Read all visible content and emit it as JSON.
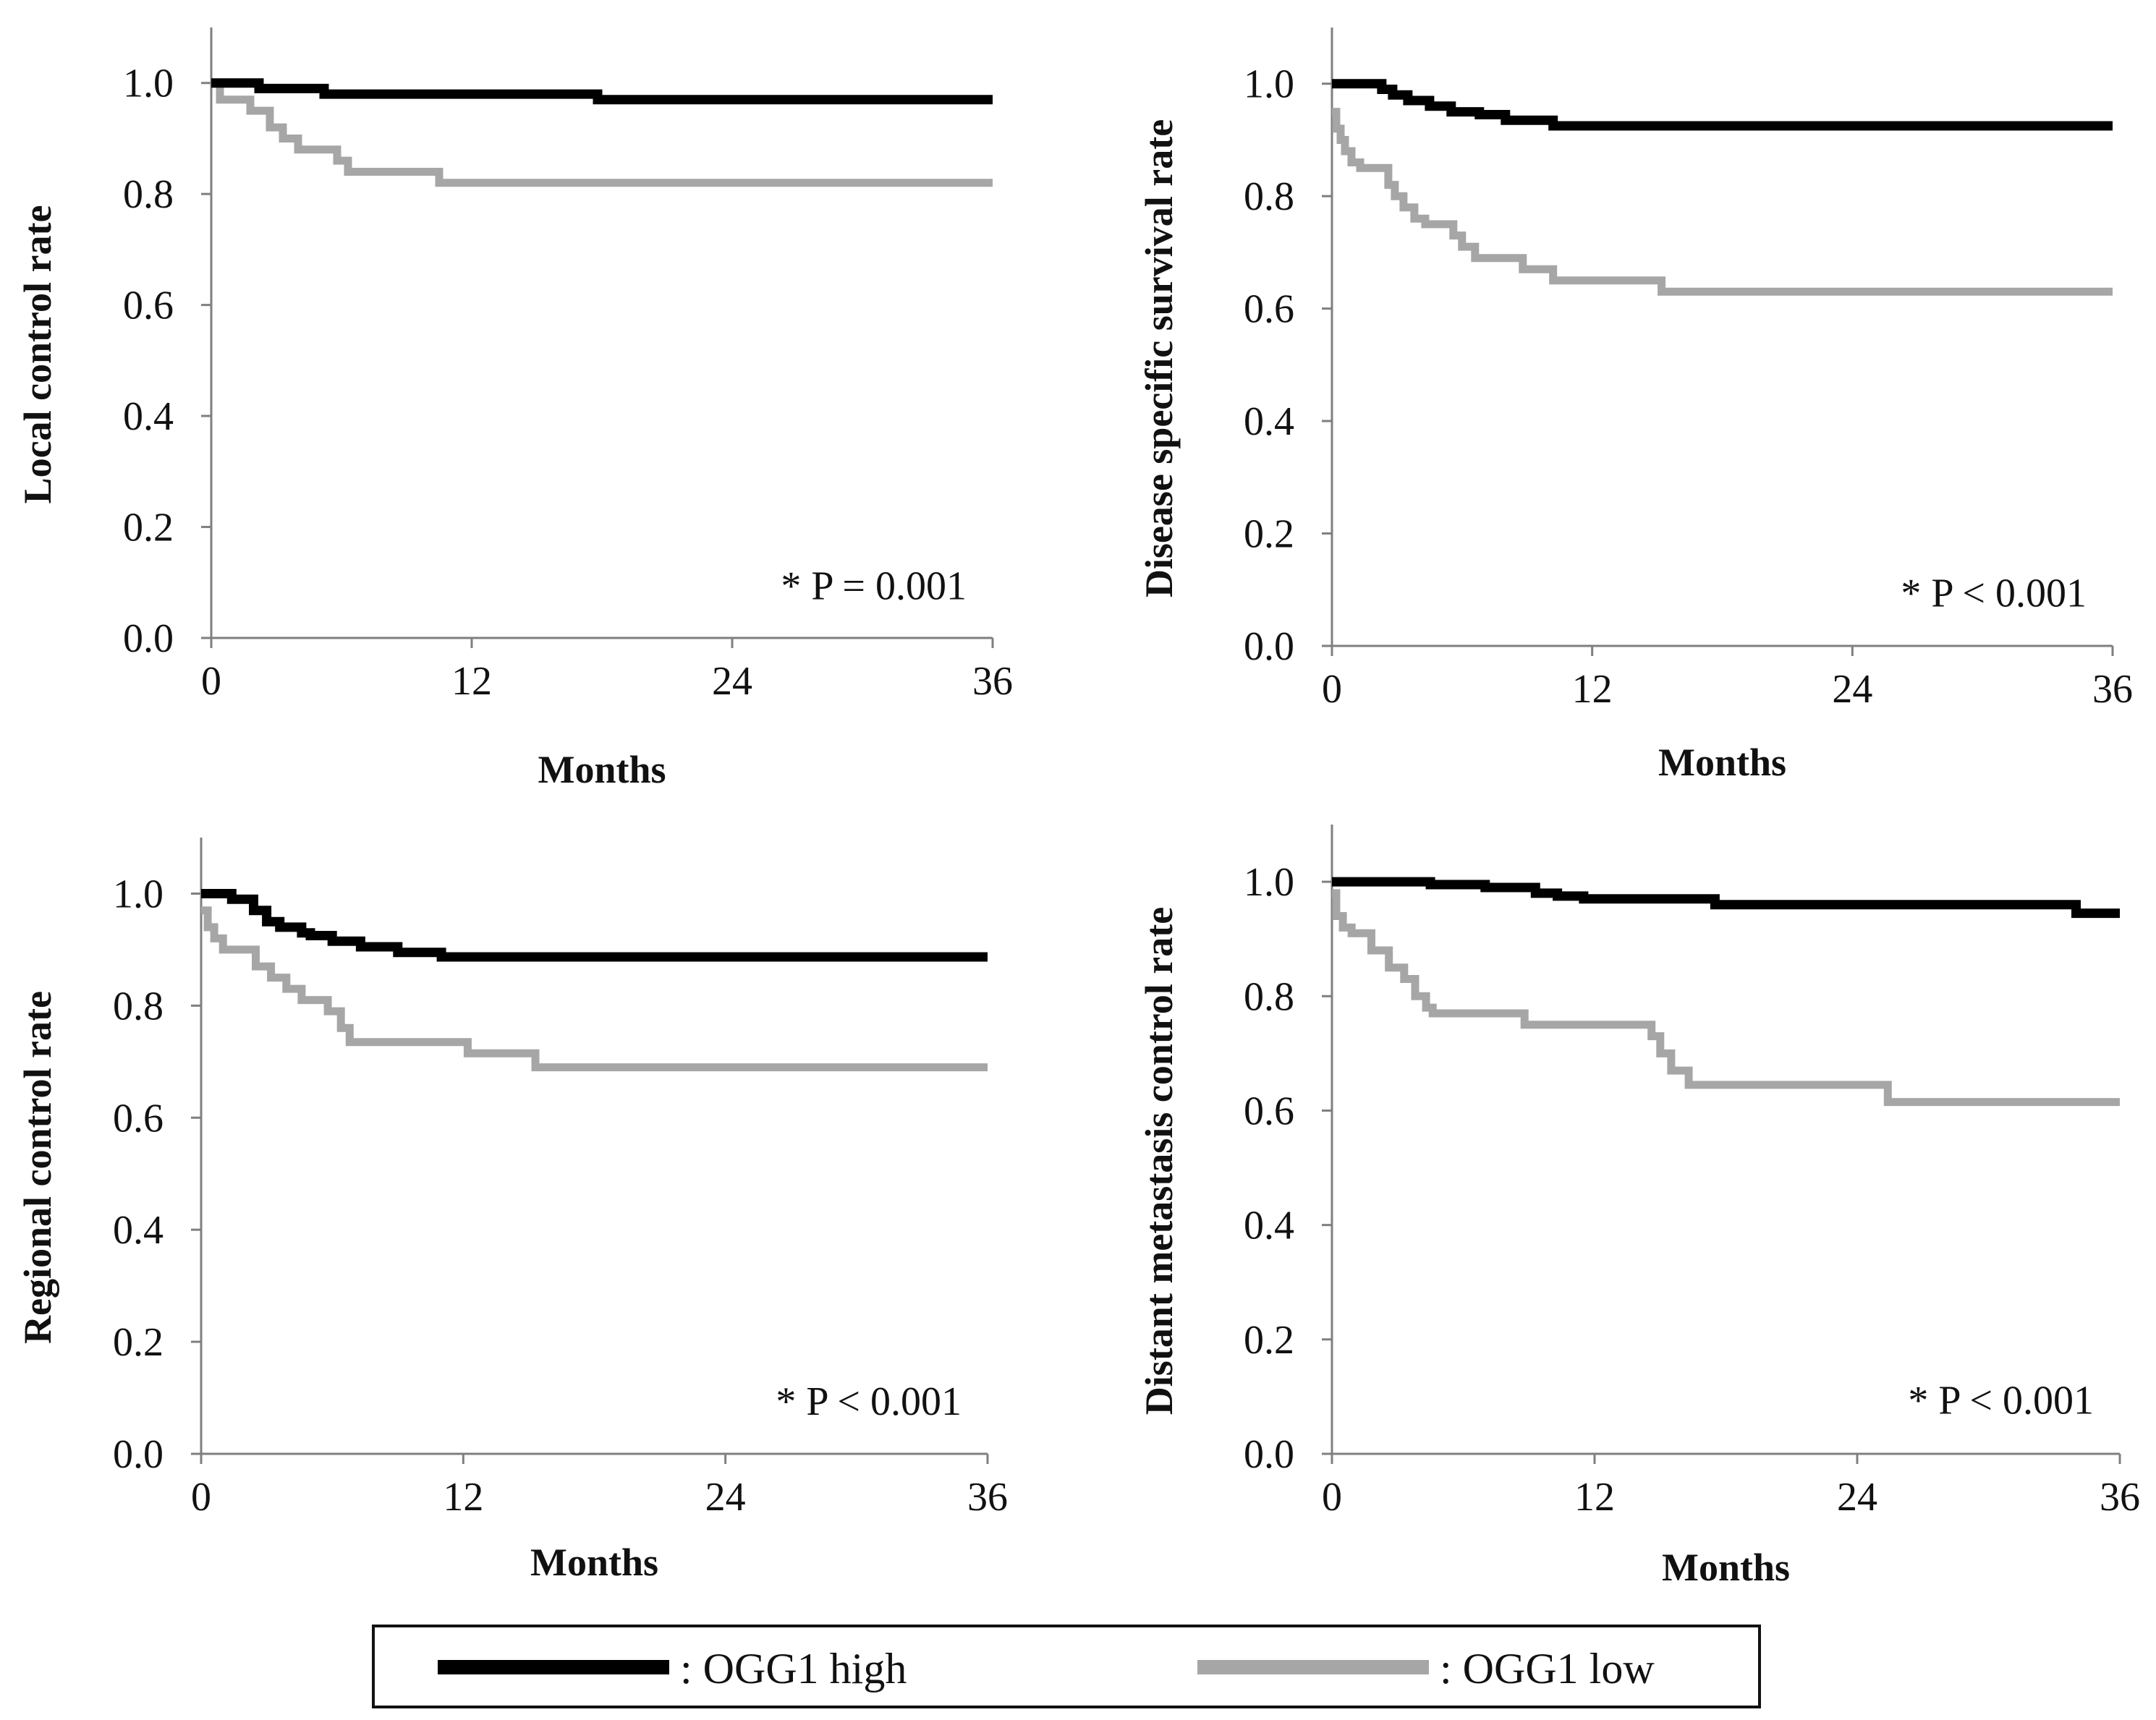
{
  "colors": {
    "high": "#000000",
    "low": "#a6a6a6",
    "axis": "#7f7f7f",
    "text": "#111111"
  },
  "legend": {
    "items": [
      {
        "label": ": OGG1 high",
        "color": "#000000"
      },
      {
        "label": ": OGG1 low",
        "color": "#a6a6a6"
      }
    ]
  },
  "chart_data": [
    {
      "type": "line",
      "ylabel": "Local control rate",
      "xlabel": "Months",
      "annotation": "* P = 0.001",
      "xlim": [
        0,
        36
      ],
      "ylim": [
        0,
        1.1
      ],
      "xticks": [
        0,
        12,
        24,
        36
      ],
      "xtick_labels": [
        "0",
        "12",
        "24",
        "36"
      ],
      "yticks": [
        0,
        0.2,
        0.4,
        0.6,
        0.8,
        1.0
      ],
      "ytick_labels": [
        "0.0",
        "0.2",
        "0.4",
        "0.6",
        "0.8",
        "1.0"
      ],
      "series": [
        {
          "name": "OGG1 high",
          "x": [
            0,
            2.2,
            5.2,
            17.8,
            36
          ],
          "y": [
            1.0,
            0.99,
            0.98,
            0.97,
            0.97
          ]
        },
        {
          "name": "OGG1 low",
          "x": [
            0,
            0.4,
            1.8,
            2.7,
            3.3,
            4.0,
            5.8,
            6.3,
            10.5,
            36
          ],
          "y": [
            1.0,
            0.97,
            0.95,
            0.92,
            0.9,
            0.88,
            0.86,
            0.84,
            0.82,
            0.82
          ]
        }
      ]
    },
    {
      "type": "line",
      "ylabel": "Disease specific survival rate",
      "xlabel": "Months",
      "annotation": "* P < 0.001",
      "xlim": [
        0,
        36
      ],
      "ylim": [
        0,
        1.1
      ],
      "xticks": [
        0,
        12,
        24,
        36
      ],
      "xtick_labels": [
        "0",
        "12",
        "24",
        "36"
      ],
      "yticks": [
        0,
        0.2,
        0.4,
        0.6,
        0.8,
        1.0
      ],
      "ytick_labels": [
        "0.0",
        "0.2",
        "0.4",
        "0.6",
        "0.8",
        "1.0"
      ],
      "series": [
        {
          "name": "OGG1 high",
          "x": [
            0,
            2.3,
            2.8,
            3.5,
            4.5,
            5.5,
            6.8,
            8.0,
            10.2,
            36
          ],
          "y": [
            1.0,
            0.99,
            0.98,
            0.97,
            0.96,
            0.95,
            0.945,
            0.935,
            0.925,
            0.925
          ]
        },
        {
          "name": "OGG1 low",
          "x": [
            0,
            0.2,
            0.4,
            0.6,
            0.9,
            1.3,
            2.6,
            2.9,
            3.3,
            3.8,
            4.3,
            5.6,
            6.0,
            6.6,
            8.8,
            10.2,
            15.2,
            36
          ],
          "y": [
            0.95,
            0.92,
            0.9,
            0.88,
            0.86,
            0.85,
            0.82,
            0.8,
            0.78,
            0.76,
            0.75,
            0.73,
            0.71,
            0.69,
            0.67,
            0.65,
            0.63,
            0.63
          ]
        }
      ]
    },
    {
      "type": "line",
      "ylabel": "Regional control rate",
      "xlabel": "Months",
      "annotation": "* P < 0.001",
      "xlim": [
        0,
        36
      ],
      "ylim": [
        0,
        1.1
      ],
      "xticks": [
        0,
        12,
        24,
        36
      ],
      "xtick_labels": [
        "0",
        "12",
        "24",
        "36"
      ],
      "yticks": [
        0,
        0.2,
        0.4,
        0.6,
        0.8,
        1.0
      ],
      "ytick_labels": [
        "0.0",
        "0.2",
        "0.4",
        "0.6",
        "0.8",
        "1.0"
      ],
      "series": [
        {
          "name": "OGG1 high",
          "x": [
            0,
            1.4,
            2.4,
            3.0,
            3.6,
            4.6,
            5.0,
            6.0,
            7.3,
            9.0,
            11.0,
            36
          ],
          "y": [
            1.0,
            0.99,
            0.97,
            0.95,
            0.94,
            0.93,
            0.925,
            0.915,
            0.905,
            0.895,
            0.887,
            0.887
          ]
        },
        {
          "name": "OGG1 low",
          "x": [
            0,
            0.3,
            0.6,
            1.0,
            2.5,
            3.2,
            3.9,
            4.6,
            5.8,
            6.4,
            6.8,
            12.2,
            15.3,
            36
          ],
          "y": [
            0.97,
            0.94,
            0.92,
            0.9,
            0.87,
            0.85,
            0.83,
            0.81,
            0.79,
            0.76,
            0.735,
            0.715,
            0.69,
            0.69
          ]
        }
      ]
    },
    {
      "type": "line",
      "ylabel": "Distant metastasis control rate",
      "xlabel": "Months",
      "annotation": "* P < 0.001",
      "xlim": [
        0,
        36
      ],
      "ylim": [
        0,
        1.1
      ],
      "xticks": [
        0,
        12,
        24,
        36
      ],
      "xtick_labels": [
        "0",
        "12",
        "24",
        "36"
      ],
      "yticks": [
        0,
        0.2,
        0.4,
        0.6,
        0.8,
        1.0
      ],
      "ytick_labels": [
        "0.0",
        "0.2",
        "0.4",
        "0.6",
        "0.8",
        "1.0"
      ],
      "series": [
        {
          "name": "OGG1 high",
          "x": [
            0,
            4.5,
            7.0,
            9.3,
            10.3,
            11.5,
            17.5,
            34.0,
            36
          ],
          "y": [
            1.0,
            0.995,
            0.99,
            0.98,
            0.975,
            0.97,
            0.96,
            0.945,
            0.945
          ]
        },
        {
          "name": "OGG1 low",
          "x": [
            0,
            0.2,
            0.5,
            0.9,
            1.8,
            2.6,
            3.3,
            3.8,
            4.3,
            4.6,
            8.8,
            14.6,
            15.0,
            15.5,
            16.3,
            25.4,
            36
          ],
          "y": [
            0.98,
            0.94,
            0.92,
            0.91,
            0.88,
            0.85,
            0.83,
            0.8,
            0.78,
            0.77,
            0.75,
            0.73,
            0.7,
            0.67,
            0.645,
            0.615,
            0.615
          ]
        }
      ]
    }
  ]
}
